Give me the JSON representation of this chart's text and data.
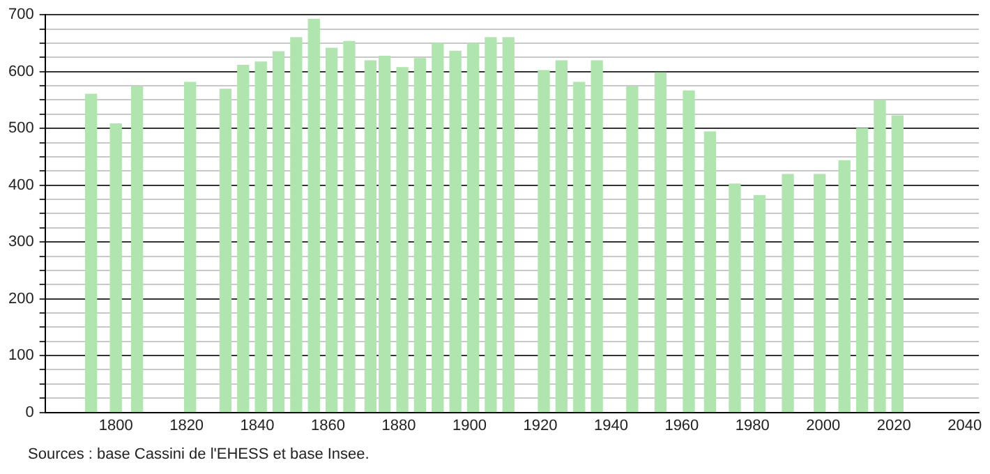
{
  "chart_data": {
    "type": "bar",
    "color": "#b0e5b0",
    "x": [
      1793,
      1800,
      1806,
      1821,
      1831,
      1836,
      1841,
      1846,
      1851,
      1856,
      1861,
      1866,
      1872,
      1876,
      1881,
      1886,
      1891,
      1896,
      1901,
      1906,
      1911,
      1921,
      1926,
      1931,
      1936,
      1946,
      1954,
      1962,
      1968,
      1975,
      1982,
      1990,
      1999,
      2006,
      2011,
      2016,
      2021
    ],
    "values": [
      560,
      508,
      574,
      581,
      569,
      611,
      617,
      635,
      660,
      692,
      641,
      653,
      619,
      627,
      607,
      623,
      649,
      636,
      649,
      660,
      660,
      602,
      619,
      581,
      619,
      574,
      598,
      566,
      494,
      402,
      382,
      419,
      419,
      443,
      500,
      549,
      522
    ],
    "xlim": [
      1780,
      2044
    ],
    "xticks": [
      1800,
      1820,
      1840,
      1860,
      1880,
      1900,
      1920,
      1940,
      1960,
      1980,
      2000,
      2020,
      2040
    ],
    "ylim": [
      0,
      700
    ],
    "yticks": [
      0,
      {
        "value": 25,
        "label": null
      },
      {
        "value": 50,
        "label": null
      },
      {
        "value": 75,
        "label": null
      },
      100,
      {
        "value": 125,
        "label": null
      },
      {
        "value": 150,
        "label": null
      },
      {
        "value": 175,
        "label": null
      },
      200,
      {
        "value": 225,
        "label": null
      },
      {
        "value": 250,
        "label": null
      },
      {
        "value": 275,
        "label": null
      },
      300,
      {
        "value": 325,
        "label": null
      },
      {
        "value": 350,
        "label": null
      },
      {
        "value": 375,
        "label": null
      },
      400,
      {
        "value": 425,
        "label": null
      },
      {
        "value": 450,
        "label": null
      },
      {
        "value": 475,
        "label": null
      },
      500,
      {
        "value": 525,
        "label": null
      },
      {
        "value": 550,
        "label": null
      },
      {
        "value": 575,
        "label": null
      },
      600,
      {
        "value": 625,
        "label": null
      },
      {
        "value": 650,
        "label": null
      },
      {
        "value": 675,
        "label": null
      },
      700
    ],
    "grid": "y",
    "annotations": [
      "Sources : base Cassini de l'EHESS et base Insee."
    ]
  }
}
